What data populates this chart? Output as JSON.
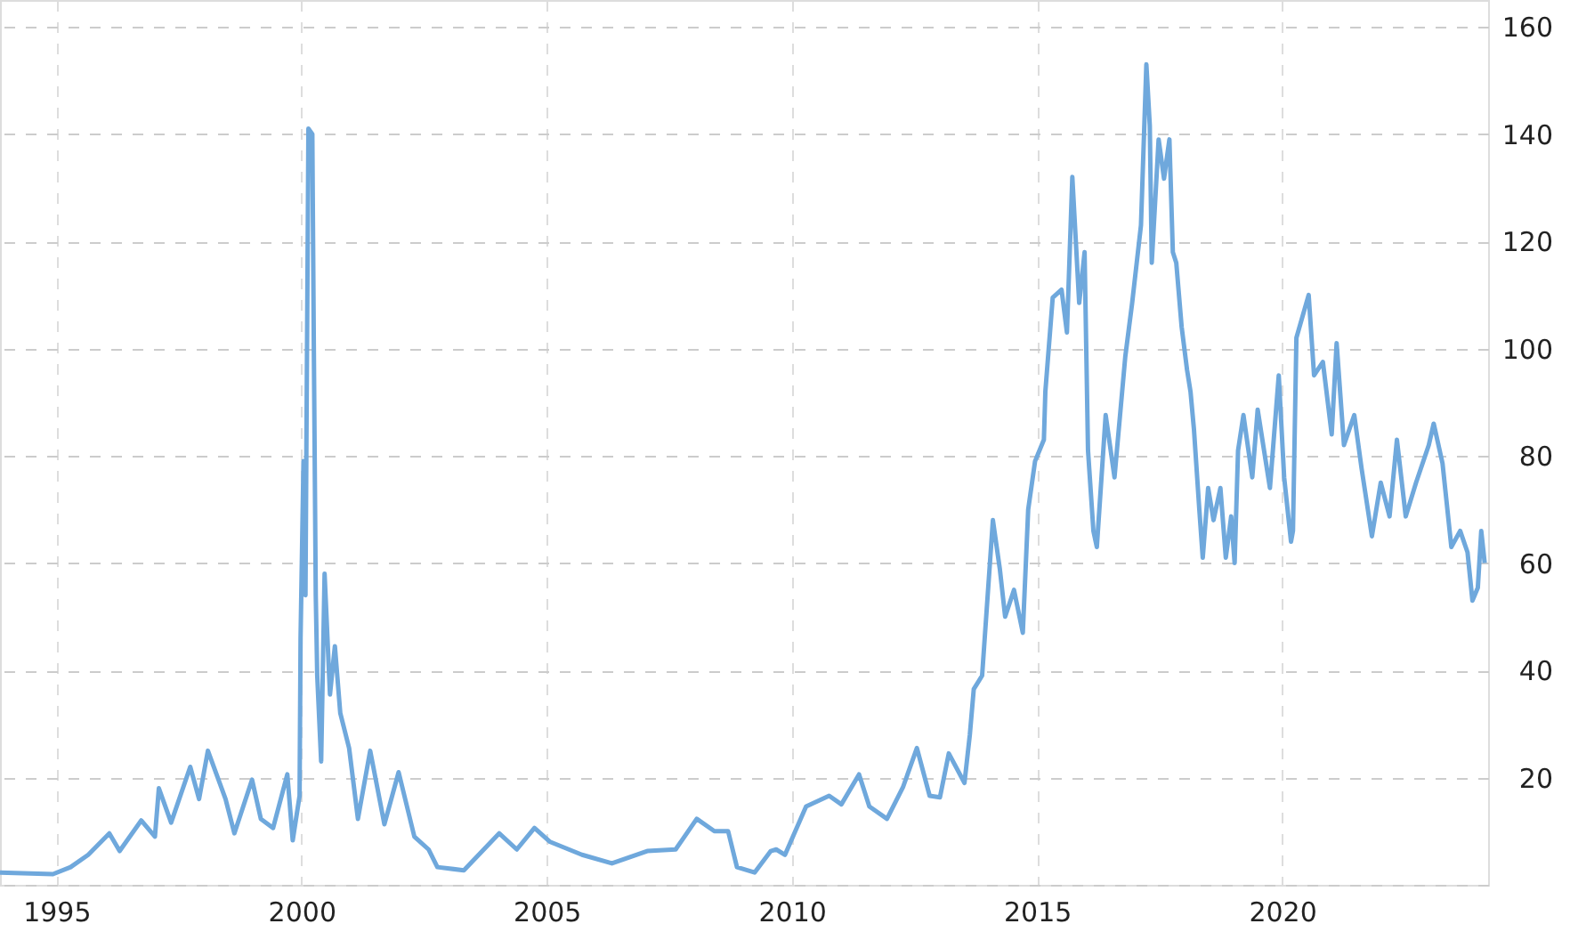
{
  "chart_data": {
    "type": "line",
    "x": [
      1993.85,
      1994.93,
      1995.29,
      1995.65,
      1996.08,
      1996.29,
      1996.73,
      1997.01,
      1997.09,
      1997.34,
      1997.73,
      1997.91,
      1998.09,
      1998.45,
      1998.63,
      1998.99,
      1999.17,
      1999.42,
      1999.71,
      1999.82,
      1999.96,
      1999.98,
      2000.04,
      2000.08,
      2000.14,
      2000.22,
      2000.25,
      2000.29,
      2000.32,
      2000.4,
      2000.47,
      2000.58,
      2000.68,
      2000.79,
      2000.97,
      2001.15,
      2001.4,
      2001.69,
      2001.98,
      2002.3,
      2002.59,
      2002.77,
      2003.31,
      2004.03,
      2004.39,
      2004.75,
      2005.07,
      2005.72,
      2006.33,
      2007.05,
      2007.63,
      2008.06,
      2008.42,
      2008.7,
      2008.88,
      2009.24,
      2009.57,
      2009.68,
      2009.86,
      2010.29,
      2010.76,
      2011.01,
      2011.37,
      2011.58,
      2011.94,
      2012.27,
      2012.55,
      2012.81,
      2013.02,
      2013.2,
      2013.52,
      2013.63,
      2013.71,
      2013.88,
      2014.1,
      2014.24,
      2014.35,
      2014.53,
      2014.71,
      2014.82,
      2014.96,
      2015.14,
      2015.17,
      2015.32,
      2015.5,
      2015.61,
      2015.72,
      2015.86,
      2015.97,
      2016.04,
      2016.15,
      2016.22,
      2016.4,
      2016.58,
      2016.8,
      2016.94,
      2017.12,
      2017.23,
      2017.3,
      2017.34,
      2017.48,
      2017.59,
      2017.7,
      2017.77,
      2017.84,
      2017.95,
      2018.06,
      2018.13,
      2018.2,
      2018.31,
      2018.38,
      2018.49,
      2018.6,
      2018.74,
      2018.85,
      2018.96,
      2019.03,
      2019.1,
      2019.21,
      2019.39,
      2019.5,
      2019.75,
      2019.93,
      2020.04,
      2020.18,
      2020.22,
      2020.29,
      2020.54,
      2020.65,
      2020.83,
      2021.01,
      2021.11,
      2021.26,
      2021.47,
      2021.62,
      2021.83,
      2022.01,
      2022.19,
      2022.34,
      2022.52,
      2022.73,
      2022.99,
      2023.09,
      2023.27,
      2023.45,
      2023.63,
      2023.78,
      2023.88,
      2023.99,
      2024.06,
      2024.13
    ],
    "series": [
      {
        "color": "#6fa8dc",
        "values": [
          2.3,
          2,
          3.3,
          5.6,
          9.6,
          6.3,
          12,
          9,
          18,
          11.6,
          22,
          16,
          25,
          16,
          9.6,
          19.6,
          12.3,
          10.6,
          20.6,
          8.3,
          16.6,
          46,
          79,
          54,
          141,
          140,
          101,
          54,
          39,
          23,
          58,
          35.5,
          44.5,
          32,
          25.5,
          12.3,
          25,
          11.3,
          21,
          9,
          6.6,
          3.3,
          2.7,
          9.6,
          6.6,
          10.6,
          8,
          5.6,
          4,
          6.3,
          6.6,
          12.3,
          10,
          10,
          3.3,
          2.3,
          6.3,
          6.6,
          5.6,
          14.6,
          16.6,
          15,
          20.6,
          14.6,
          12.3,
          18.3,
          25.5,
          16.6,
          16.3,
          24.5,
          19,
          28,
          36.5,
          39,
          68,
          59,
          50,
          55,
          47,
          70,
          79,
          83,
          92,
          109.5,
          111,
          103,
          132,
          108.5,
          118,
          81,
          66,
          63,
          87.6,
          76,
          98.5,
          108.5,
          123,
          153,
          141.6,
          116,
          139,
          131.7,
          139,
          118,
          116,
          104,
          96,
          92,
          85,
          70,
          61,
          74,
          68,
          74,
          61,
          68.7,
          60,
          81,
          87.6,
          76,
          88.6,
          74,
          95,
          76,
          64,
          66,
          102,
          110,
          95,
          97.5,
          84,
          101,
          82,
          87.6,
          77.6,
          65,
          75,
          68.7,
          83,
          68.7,
          75,
          82,
          86,
          78.6,
          63,
          66,
          62,
          53,
          55.4,
          66,
          60
        ]
      }
    ],
    "xlim": [
      1993.85,
      2024.2
    ],
    "xticks": [
      1995,
      2000,
      2005,
      2010,
      2015,
      2020
    ],
    "ylim": [
      0,
      165
    ],
    "yticks": [
      {
        "value": 0,
        "label": null
      },
      20,
      40,
      60,
      80,
      100,
      120,
      140,
      160
    ],
    "grid": true,
    "marker": "none"
  }
}
